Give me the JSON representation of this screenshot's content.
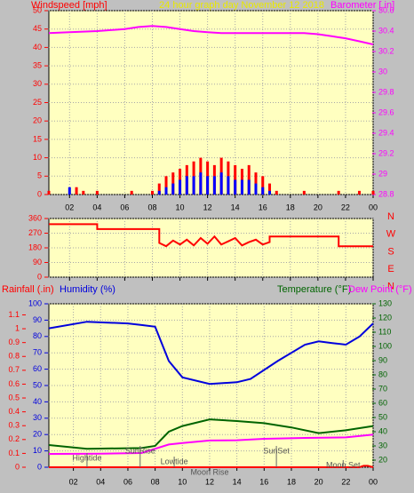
{
  "chart_data": [
    {
      "type": "bar",
      "title": "24 hour graph day   November 12 2018",
      "xlim": [
        0.5,
        24
      ],
      "xticks": [
        {
          "value": 2,
          "label": "02"
        },
        {
          "value": 4,
          "label": "04"
        },
        {
          "value": 6,
          "label": "06"
        },
        {
          "value": 8,
          "label": "08"
        },
        10,
        12,
        14,
        16,
        18,
        20,
        22,
        {
          "value": 24,
          "label": "00"
        }
      ],
      "ylim": [
        0,
        50
      ],
      "yticks": [
        0,
        5,
        10,
        15,
        20,
        25,
        30,
        35,
        40,
        45,
        50
      ],
      "y2lim": [
        28.8,
        30.6
      ],
      "y2ticks": [
        28.8,
        29,
        29.2,
        29.4,
        29.6,
        29.8,
        30,
        30.2,
        30.4,
        30.6
      ],
      "grid": true,
      "series": [
        {
          "name": "Windspeed [mph]",
          "type": "bar",
          "color": "#ff0000",
          "x": [
            0.5,
            1,
            1.5,
            2,
            2.5,
            3,
            3.5,
            4,
            4.5,
            5,
            5.5,
            6,
            6.5,
            7,
            7.5,
            8,
            8.5,
            9,
            9.5,
            10,
            10.5,
            11,
            11.5,
            12,
            12.5,
            13,
            13.5,
            14,
            14.5,
            15,
            15.5,
            16,
            16.5,
            17,
            17.5,
            18,
            18.5,
            19,
            19.5,
            20,
            20.5,
            21,
            21.5,
            22,
            22.5,
            23,
            23.5,
            24
          ],
          "values": [
            1,
            0,
            0,
            0,
            2,
            1,
            0,
            1,
            0,
            0,
            0,
            0,
            1,
            0,
            0,
            1,
            3,
            5,
            6,
            7,
            8,
            9,
            10,
            9,
            8,
            10,
            9,
            8,
            7,
            8,
            6,
            5,
            3,
            1,
            0,
            0,
            0,
            1,
            0,
            0,
            0,
            0,
            1,
            0,
            0,
            1,
            0,
            1
          ]
        },
        {
          "type": "bar",
          "color": "#0000ff",
          "x": [
            0.5,
            1,
            1.5,
            2,
            2.5,
            3,
            3.5,
            4,
            4.5,
            5,
            5.5,
            6,
            6.5,
            7,
            7.5,
            8,
            8.5,
            9,
            9.5,
            10,
            10.5,
            11,
            11.5,
            12,
            12.5,
            13,
            13.5,
            14,
            14.5,
            15,
            15.5,
            16,
            16.5,
            17,
            17.5,
            18,
            18.5,
            19,
            19.5,
            20,
            20.5,
            21,
            21.5,
            22,
            22.5,
            23,
            23.5,
            24
          ],
          "values": [
            0,
            0,
            0,
            2,
            0,
            0,
            0,
            0,
            0,
            0,
            0,
            0,
            0,
            0,
            0,
            0,
            1,
            2,
            3,
            4,
            5,
            5,
            6,
            5,
            5,
            6,
            5,
            4,
            4,
            4,
            3,
            2,
            1,
            0,
            0,
            0,
            0,
            0,
            0,
            0,
            0,
            0,
            0,
            0,
            0,
            0,
            0,
            0
          ]
        },
        {
          "name": "Barometer [.in]",
          "type": "line",
          "axis": "y2",
          "color": "#ff00ff",
          "x": [
            0.5,
            2,
            4,
            6,
            7,
            8,
            9,
            10,
            11,
            12,
            13,
            14,
            16,
            18,
            19,
            20,
            21,
            22,
            23,
            24
          ],
          "values": [
            30.38,
            30.39,
            30.4,
            30.42,
            30.44,
            30.45,
            30.44,
            30.42,
            30.4,
            30.39,
            30.38,
            30.38,
            30.38,
            30.38,
            30.38,
            30.37,
            30.35,
            30.33,
            30.3,
            30.27
          ]
        }
      ]
    },
    {
      "type": "line",
      "xlim": [
        0.5,
        24
      ],
      "xticks": [
        2,
        4,
        6,
        8,
        10,
        12,
        14,
        16,
        18,
        20,
        22,
        24
      ],
      "ylim": [
        0,
        360
      ],
      "yticks": [
        0,
        90,
        180,
        270,
        360
      ],
      "grid": true,
      "compass": [
        "N",
        "W",
        "S",
        "E",
        "N"
      ],
      "series": [
        {
          "type": "line",
          "color": "#ff0000",
          "x": [
            0.5,
            4,
            4,
            8.5,
            8.5,
            9,
            9.5,
            10,
            10.5,
            11,
            11.5,
            12,
            12.5,
            13,
            13.5,
            14,
            14.5,
            15,
            15.5,
            16,
            16.5,
            16.5,
            21.5,
            21.5,
            24
          ],
          "values": [
            325,
            325,
            295,
            295,
            210,
            190,
            225,
            200,
            230,
            195,
            240,
            205,
            250,
            200,
            220,
            240,
            195,
            215,
            230,
            200,
            215,
            250,
            250,
            190,
            190
          ]
        }
      ]
    },
    {
      "type": "line",
      "xlim": [
        0.2,
        24
      ],
      "xticks": [
        {
          "value": 2,
          "label": "02"
        },
        {
          "value": 4,
          "label": "04"
        },
        {
          "value": 6,
          "label": "06"
        },
        {
          "value": 8,
          "label": "08"
        },
        10,
        12,
        14,
        16,
        18,
        20,
        22,
        {
          "value": 24,
          "label": "00"
        }
      ],
      "ylim": [
        0,
        1.18
      ],
      "yticks": [
        0,
        0.1,
        0.2,
        0.3,
        0.4,
        0.5,
        0.6,
        0.7,
        0.8,
        0.9,
        1,
        1.1
      ],
      "y3lim": [
        0,
        100
      ],
      "y3ticks": [
        0,
        10,
        20,
        30,
        40,
        50,
        60,
        70,
        80,
        90,
        100
      ],
      "y2lim": [
        15,
        130
      ],
      "y2ticks": [
        20,
        30,
        40,
        50,
        60,
        70,
        80,
        90,
        100,
        110,
        120,
        130
      ],
      "grid": true,
      "series": [
        {
          "name": "Rainfall (.in)",
          "type": "line",
          "color": "#ff0000",
          "x": [
            0.2,
            23,
            23.3,
            23.6,
            24
          ],
          "values": [
            0,
            0,
            0.01,
            0.01,
            0
          ]
        },
        {
          "name": "Humidity (%)",
          "type": "line",
          "axis": "y3",
          "color": "#0000dd",
          "x": [
            0.2,
            3,
            6,
            7,
            8,
            9,
            10,
            12,
            14,
            15,
            17,
            19,
            20,
            21,
            22,
            23,
            24
          ],
          "values": [
            85,
            89,
            88,
            87,
            86,
            65,
            55,
            51,
            52,
            54,
            65,
            75,
            77,
            76,
            75,
            80,
            88
          ]
        },
        {
          "name": "Temperature (°F)",
          "type": "line",
          "axis": "y2",
          "color": "#006400",
          "x": [
            0.2,
            3,
            7,
            8,
            9,
            10,
            12,
            14,
            16,
            18,
            20,
            22,
            24
          ],
          "values": [
            30.6,
            28,
            28.5,
            30,
            40,
            44,
            48.7,
            47.5,
            46,
            43,
            39,
            41,
            44
          ]
        },
        {
          "name": "Dew Point (°F)",
          "type": "line",
          "axis": "y2",
          "color": "#ff00ff",
          "x": [
            0.2,
            4,
            7,
            9,
            10,
            12,
            14,
            16,
            19,
            22,
            24
          ],
          "values": [
            24.4,
            24.5,
            25,
            31,
            32,
            33.8,
            34,
            35,
            35.6,
            36,
            38
          ]
        }
      ],
      "annotations": [
        {
          "text": "Hightide",
          "x": 3
        },
        {
          "text": "SunRise",
          "x": 6.9
        },
        {
          "text": "Lowtide",
          "x": 9.4
        },
        {
          "text": "Moon Rise",
          "x": 12
        },
        {
          "text": "SunSet",
          "x": 16.9
        },
        {
          "text": "Moon Set",
          "x": 21.8
        }
      ]
    }
  ]
}
